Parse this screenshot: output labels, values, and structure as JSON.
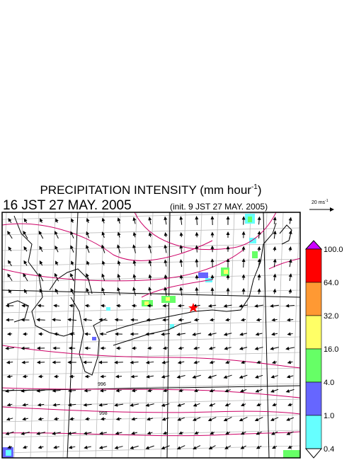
{
  "header": {
    "title": "PRECIPITATION INTENSITY (mm hour",
    "title_exponent": "-1",
    "title_end": ")",
    "valid_time": "16 JST 27 MAY. 2005",
    "init_time": "(init. 9 JST 27 MAY. 2005)"
  },
  "vector_key": {
    "label": "20 ms",
    "exponent": "-1"
  },
  "colorbar": {
    "labels": [
      "100.0",
      "64.0",
      "32.0",
      "16.0",
      "4.0",
      "1.0",
      "0.4"
    ],
    "colors": [
      "#cc00ff",
      "#ff0000",
      "#ff9933",
      "#ffff66",
      "#66ff66",
      "#6666ff",
      "#66ffff",
      "#ffffff"
    ]
  },
  "map": {
    "contour_labels": [
      "996",
      "998"
    ]
  }
}
